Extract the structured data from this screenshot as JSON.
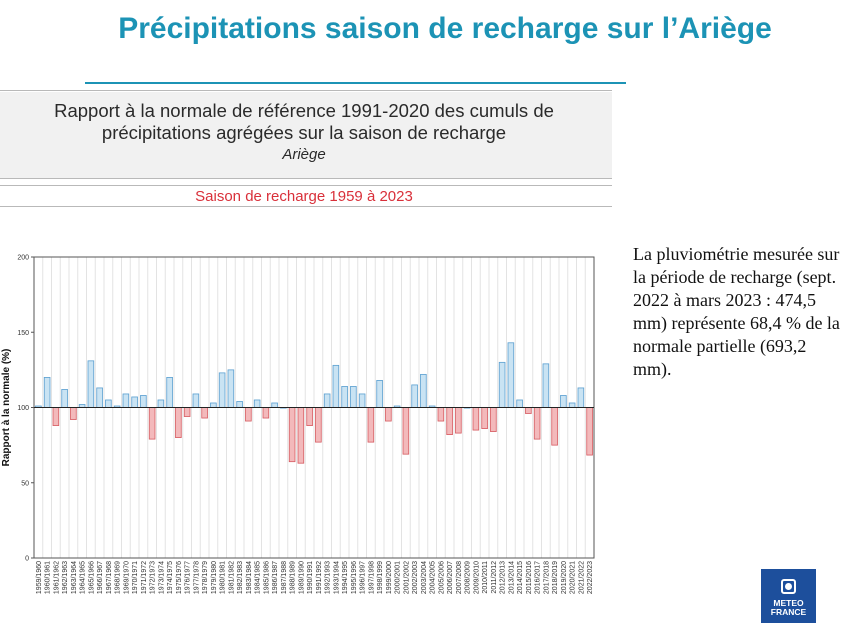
{
  "slide": {
    "title": "Précipitations saison de recharge sur l’Ariège"
  },
  "panel": {
    "heading_line1": "Rapport à la normale de référence 1991-2020 des cumuls de",
    "heading_line2": "précipitations agrégées sur la saison de recharge",
    "region": "Ariège",
    "season": "Saison de recharge 1959 à 2023"
  },
  "summary": {
    "text": "La pluviométrie mesurée sur la période de recharge (sept. 2022 à mars 2023 : 474,5 mm) représente 68,4 % de la normale partielle (693,2 mm)."
  },
  "logo": {
    "line1": "METEO",
    "line2": "FRANCE"
  },
  "colors": {
    "title": "#1c93b5",
    "above_fill": "#c9e3f3",
    "above_stroke": "#5a9fd0",
    "below_fill": "#f3b9bb",
    "below_stroke": "#d65a60",
    "season_text": "#d9303a",
    "logo_bg": "#1d4f9c"
  },
  "chart_data": {
    "type": "bar",
    "ylabel": "Rapport à la normale (%)",
    "ylim": [
      0,
      200
    ],
    "yticks": [
      0,
      50,
      100,
      150,
      200
    ],
    "reference": 100,
    "grid": "vertical",
    "categories": [
      "1959/1960",
      "1960/1961",
      "1961/1962",
      "1962/1963",
      "1963/1964",
      "1964/1965",
      "1965/1966",
      "1966/1967",
      "1967/1968",
      "1968/1969",
      "1969/1970",
      "1970/1971",
      "1971/1972",
      "1972/1973",
      "1973/1974",
      "1974/1975",
      "1975/1976",
      "1976/1977",
      "1977/1978",
      "1978/1979",
      "1979/1980",
      "1980/1981",
      "1981/1982",
      "1982/1983",
      "1983/1984",
      "1984/1985",
      "1985/1986",
      "1986/1987",
      "1987/1988",
      "1988/1989",
      "1989/1990",
      "1990/1991",
      "1991/1992",
      "1992/1993",
      "1993/1994",
      "1994/1995",
      "1995/1996",
      "1996/1997",
      "1997/1998",
      "1998/1999",
      "1999/2000",
      "2000/2001",
      "2001/2002",
      "2002/2003",
      "2003/2004",
      "2004/2005",
      "2005/2006",
      "2006/2007",
      "2007/2008",
      "2008/2009",
      "2009/2010",
      "2010/2011",
      "2011/2012",
      "2012/2013",
      "2013/2014",
      "2014/2015",
      "2015/2016",
      "2016/2017",
      "2017/2018",
      "2018/2019",
      "2019/2020",
      "2020/2021",
      "2021/2022",
      "2022/2023"
    ],
    "values": [
      101,
      120,
      88,
      112,
      92,
      102,
      131,
      113,
      105,
      101,
      109,
      107,
      108,
      79,
      105,
      120,
      80,
      94,
      109,
      93,
      103,
      123,
      125,
      104,
      91,
      105,
      93,
      103,
      100,
      64,
      63,
      88,
      77,
      109,
      128,
      114,
      114,
      109,
      77,
      118,
      91,
      101,
      69,
      115,
      122,
      101,
      91,
      82,
      83,
      100,
      85,
      86,
      84,
      130,
      143,
      105,
      96,
      79,
      129,
      75,
      108,
      103,
      113,
      68.4
    ]
  }
}
